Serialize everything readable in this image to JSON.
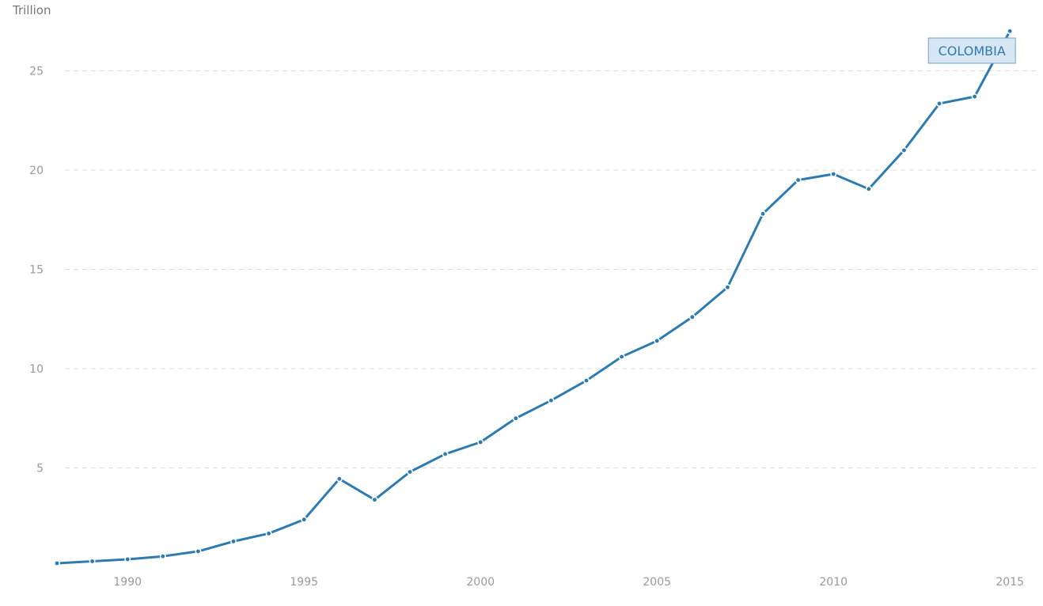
{
  "chart_data": {
    "type": "line",
    "y_unit_label": "Trillion",
    "ylim": [
      0,
      27.5
    ],
    "y_ticks": [
      5,
      10,
      15,
      20,
      25
    ],
    "x_ticks": [
      1990,
      1995,
      2000,
      2005,
      2010,
      2015
    ],
    "grid": "horizontal-dashed",
    "series": [
      {
        "name": "COLOMBIA",
        "color": "#2e7bb0",
        "x": [
          1988,
          1989,
          1990,
          1991,
          1992,
          1993,
          1994,
          1995,
          1996,
          1997,
          1998,
          1999,
          2000,
          2001,
          2002,
          2003,
          2004,
          2005,
          2006,
          2007,
          2008,
          2009,
          2010,
          2011,
          2012,
          2013,
          2014,
          2015
        ],
        "values": [
          0.2,
          0.3,
          0.4,
          0.55,
          0.8,
          1.3,
          1.7,
          2.4,
          4.45,
          3.4,
          4.8,
          5.7,
          6.3,
          7.5,
          8.4,
          9.4,
          10.6,
          11.4,
          12.6,
          14.1,
          17.8,
          19.5,
          19.8,
          19.05,
          21.0,
          23.35,
          23.7,
          27.0
        ]
      }
    ]
  }
}
